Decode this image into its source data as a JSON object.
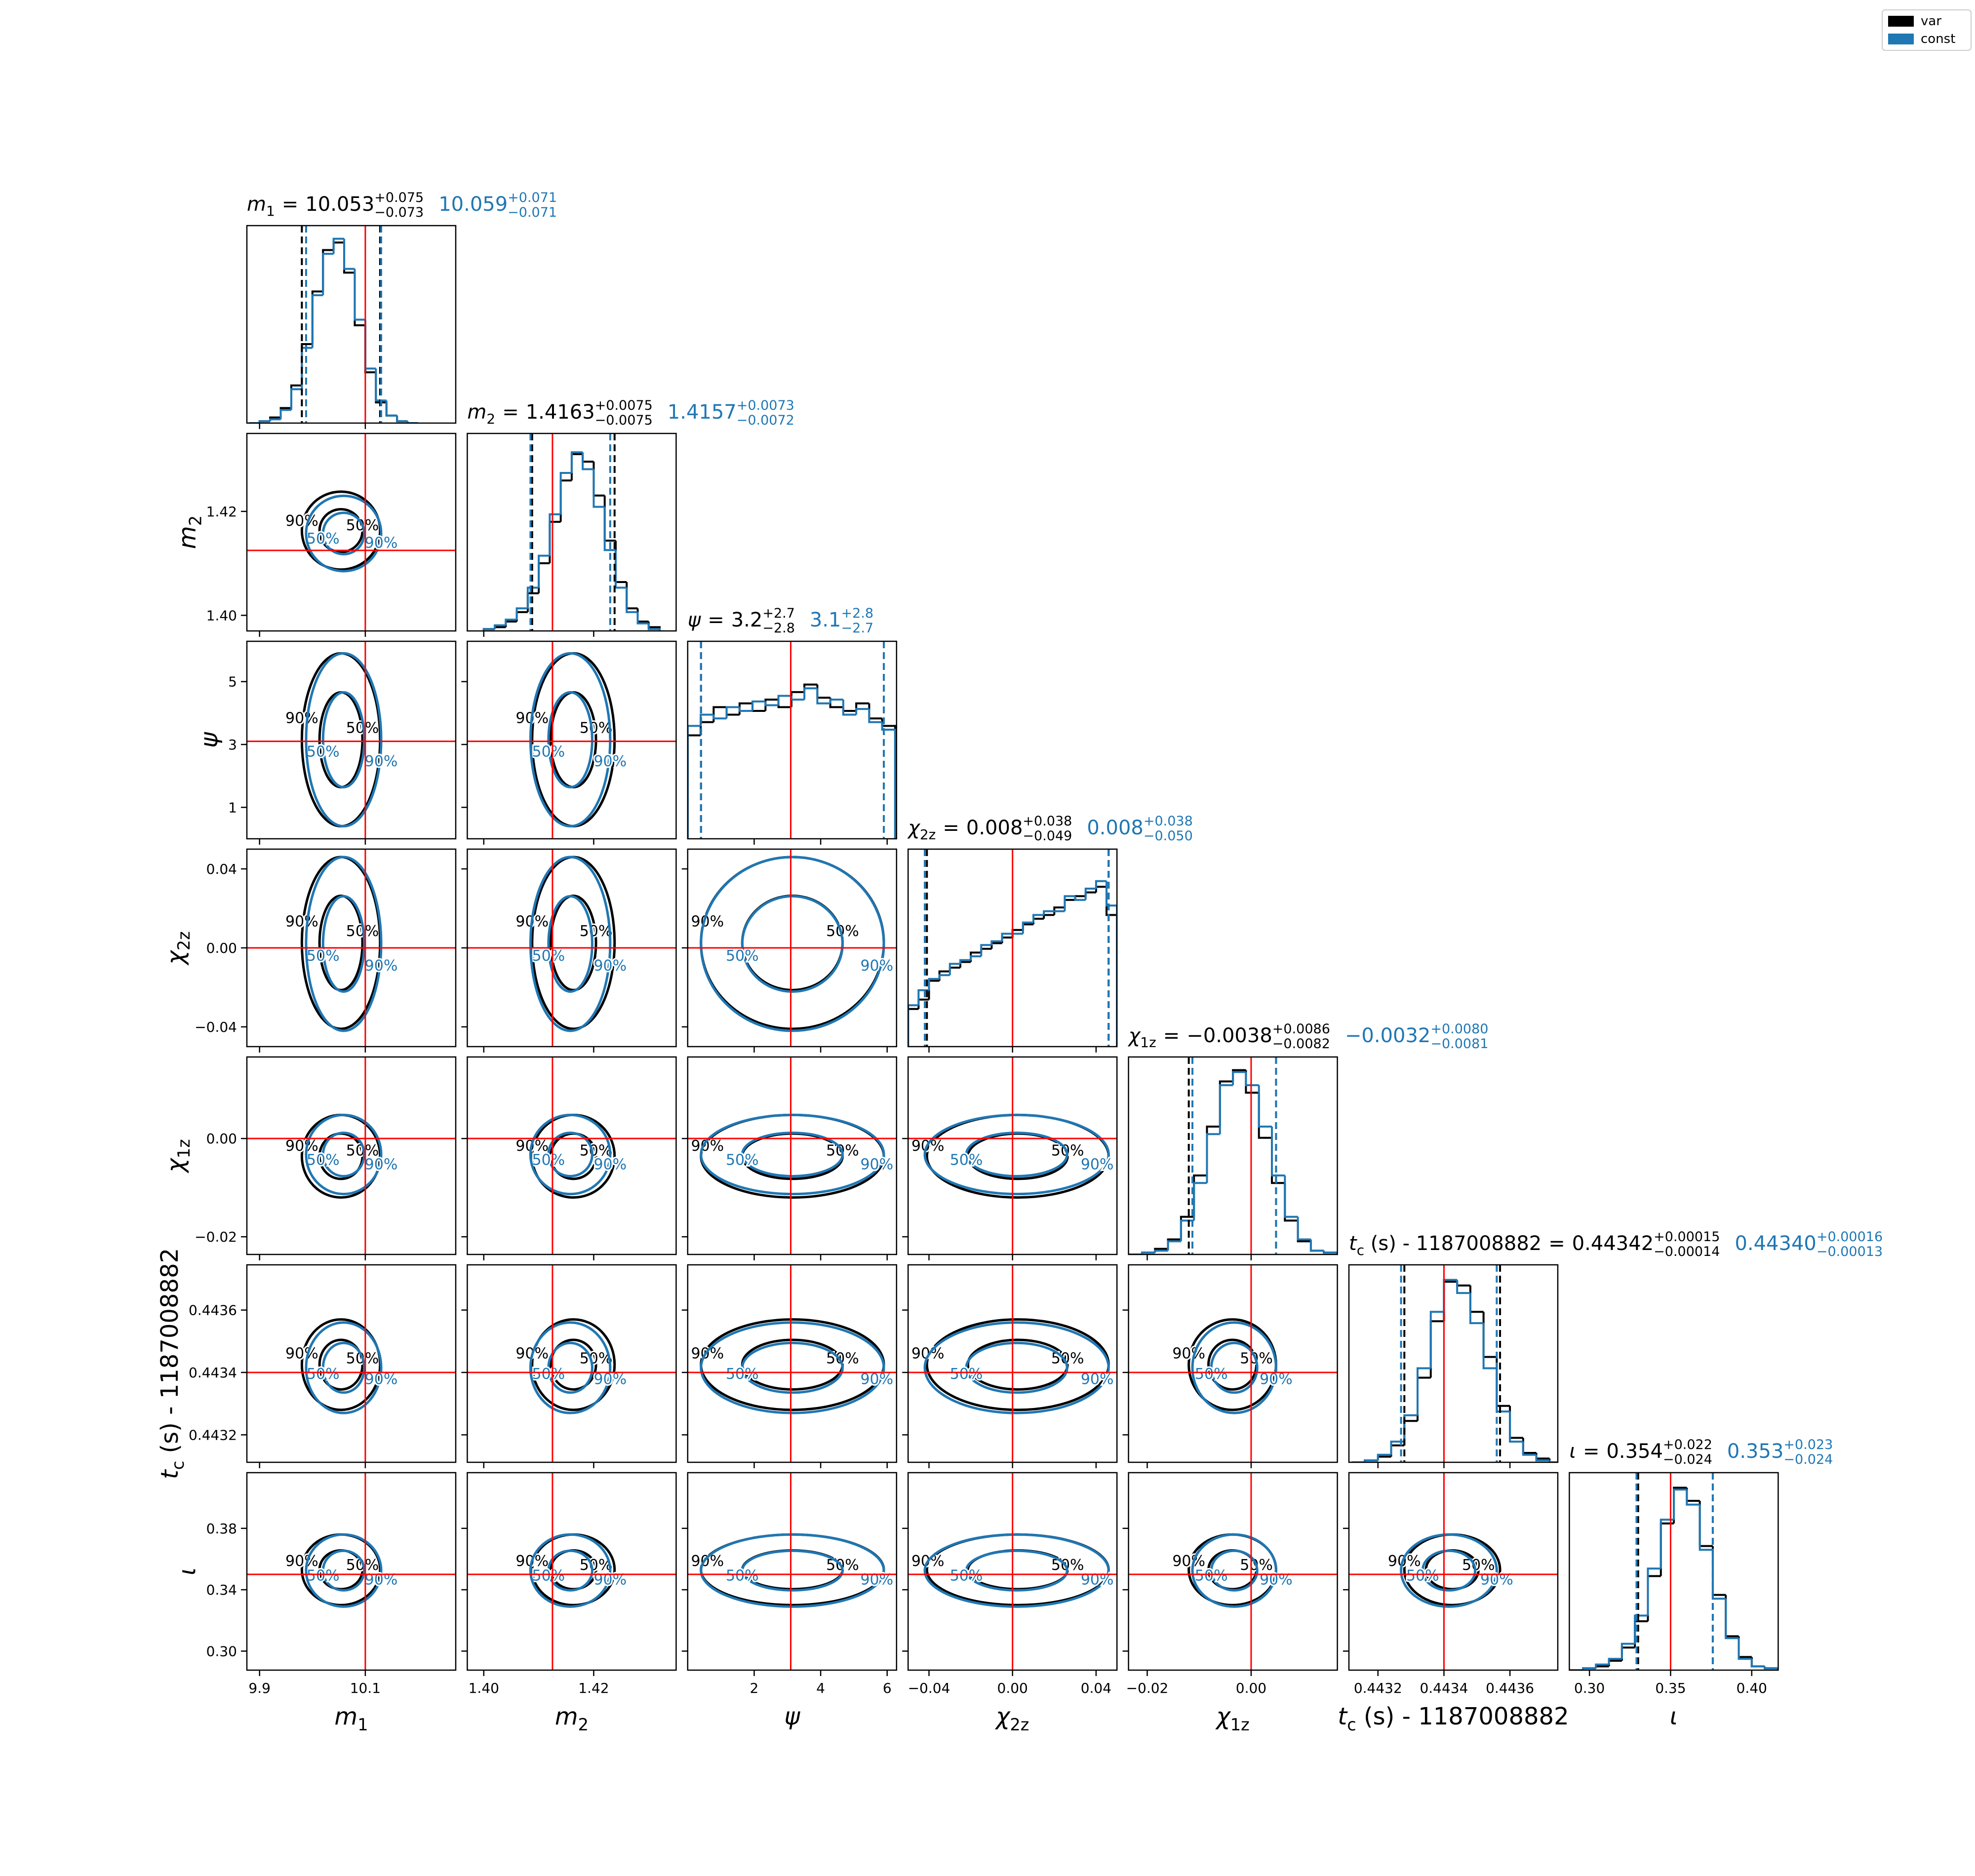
{
  "chart_data": {
    "type": "corner",
    "equals": "=",
    "legend_position": "upper right",
    "series": [
      {
        "name": "var",
        "color": "#000000"
      },
      {
        "name": "const",
        "color": "#1f77b4"
      }
    ],
    "truth_color": "#ff0000",
    "contour_levels": [
      {
        "value": 50,
        "label": "50%"
      },
      {
        "value": 90,
        "label": "90%"
      }
    ],
    "hist_ylim": [
      0,
      105
    ],
    "parameters": [
      {
        "label": {
          "base": "m",
          "sub": "1"
        },
        "lim": [
          9.876,
          10.271
        ],
        "xticks": [
          9.9,
          10.1
        ],
        "truth": 10.1,
        "summary": [
          {
            "median": 10.053,
            "plus": {
              "value": 0.075,
              "label": "+0.075"
            },
            "minus": {
              "value": 0.073,
              "label": "−0.073"
            }
          },
          {
            "median": 10.059,
            "plus": {
              "value": 0.071,
              "label": "+0.071"
            },
            "minus": {
              "value": 0.071,
              "label": "−0.071"
            }
          }
        ],
        "bins": [
          9.88,
          9.9,
          9.92,
          9.94,
          9.96,
          9.98,
          10,
          10.02,
          10.04,
          10.06,
          10.08,
          10.1,
          10.12,
          10.14,
          10.16,
          10.18,
          10.2
        ],
        "counts": [
          [
            0,
            1,
            3,
            8,
            20,
            42,
            70,
            92,
            96,
            80,
            52,
            27,
            11,
            4,
            1,
            0
          ],
          [
            0,
            1,
            2,
            7,
            18,
            40,
            68,
            90,
            98,
            82,
            55,
            29,
            12,
            4,
            1,
            0
          ]
        ]
      },
      {
        "label": {
          "base": "m",
          "sub": "2"
        },
        "lim": [
          1.397,
          1.435
        ],
        "xticks": [
          {
            "value": 1.4,
            "label": "1.40"
          },
          {
            "value": 1.42,
            "label": "1.42"
          }
        ],
        "yticks": [
          {
            "value": 1.4,
            "label": "1.40"
          },
          {
            "value": 1.42,
            "label": "1.42"
          }
        ],
        "truth": 1.4125,
        "summary": [
          {
            "median": 1.4163,
            "plus": {
              "value": 0.0075,
              "label": "+0.0075"
            },
            "minus": {
              "value": 0.0075,
              "label": "−0.0075"
            }
          },
          {
            "median": 1.4157,
            "plus": {
              "value": 0.0073,
              "label": "+0.0073"
            },
            "minus": {
              "value": 0.0072,
              "label": "−0.0072"
            }
          }
        ],
        "bins": [
          1.4,
          1.402,
          1.404,
          1.406,
          1.408,
          1.41,
          1.412,
          1.414,
          1.416,
          1.418,
          1.42,
          1.422,
          1.424,
          1.426,
          1.428,
          1.43,
          1.432
        ],
        "counts": [
          [
            1,
            2,
            5,
            10,
            20,
            36,
            58,
            80,
            94,
            90,
            72,
            48,
            26,
            12,
            5,
            2
          ],
          [
            1,
            3,
            6,
            12,
            23,
            40,
            62,
            84,
            95,
            86,
            66,
            43,
            23,
            10,
            4,
            1
          ]
        ]
      },
      {
        "label": {
          "base": "ψ"
        },
        "lim": [
          0,
          6.283
        ],
        "xticks": [
          2,
          4,
          6
        ],
        "yticks": [
          1,
          3,
          5
        ],
        "truth": 3.1,
        "summary": [
          {
            "median": 3.2,
            "plus": {
              "value": 2.7,
              "label": "+2.7"
            },
            "minus": {
              "value": 2.8,
              "label": "−2.8"
            }
          },
          {
            "median": 3.1,
            "plus": {
              "value": 2.8,
              "label": "+2.8"
            },
            "minus": {
              "value": 2.7,
              "label": "−2.7"
            }
          }
        ],
        "bins": [
          0,
          0.39,
          0.78,
          1.17,
          1.56,
          1.95,
          2.34,
          2.73,
          3.12,
          3.51,
          3.9,
          4.29,
          4.68,
          5.07,
          5.46,
          5.85,
          6.24
        ],
        "counts": [
          [
            55,
            62,
            70,
            66,
            72,
            68,
            74,
            70,
            78,
            82,
            75,
            70,
            68,
            72,
            64,
            60
          ],
          [
            60,
            66,
            64,
            70,
            68,
            73,
            71,
            76,
            74,
            80,
            72,
            74,
            66,
            69,
            62,
            58
          ]
        ]
      },
      {
        "label": {
          "base": "χ",
          "sub": "2z"
        },
        "lim": [
          -0.05,
          0.05
        ],
        "xticks": [
          {
            "value": -0.04,
            "label": "−0.04"
          },
          {
            "value": 0,
            "label": "0.00"
          },
          {
            "value": 0.04,
            "label": "0.04"
          }
        ],
        "yticks": [
          {
            "value": -0.04,
            "label": "−0.04"
          },
          {
            "value": 0,
            "label": "0.00"
          },
          {
            "value": 0.04,
            "label": "0.04"
          }
        ],
        "truth": 0,
        "summary": [
          {
            "median": 0.008,
            "plus": {
              "value": 0.038,
              "label": "+0.038"
            },
            "minus": {
              "value": 0.049,
              "label": "−0.049"
            }
          },
          {
            "median": 0.008,
            "plus": {
              "value": 0.038,
              "label": "+0.038"
            },
            "minus": {
              "value": 0.05,
              "label": "−0.050"
            }
          }
        ],
        "bins": [
          -0.05,
          -0.045,
          -0.04,
          -0.035,
          -0.03,
          -0.025,
          -0.02,
          -0.015,
          -0.01,
          -0.005,
          0,
          0.005,
          0.01,
          0.015,
          0.02,
          0.025,
          0.03,
          0.035,
          0.04,
          0.045,
          0.05
        ],
        "counts": [
          [
            20,
            25,
            35,
            40,
            42,
            45,
            50,
            52,
            55,
            58,
            62,
            65,
            68,
            70,
            74,
            78,
            80,
            82,
            85,
            70
          ],
          [
            22,
            30,
            36,
            38,
            44,
            46,
            48,
            54,
            56,
            60,
            60,
            66,
            70,
            72,
            72,
            80,
            78,
            84,
            88,
            75
          ]
        ]
      },
      {
        "label": {
          "base": "χ",
          "sub": "1z"
        },
        "lim": [
          -0.0236,
          0.0166
        ],
        "xticks": [
          {
            "value": -0.02,
            "label": "−0.02"
          },
          {
            "value": 0,
            "label": "0.00"
          }
        ],
        "yticks": [
          {
            "value": -0.02,
            "label": "−0.02"
          },
          {
            "value": 0,
            "label": "0.00"
          }
        ],
        "truth": 0,
        "summary": [
          {
            "median": {
              "value": -0.0038,
              "label": "−0.0038"
            },
            "plus": {
              "value": 0.0086,
              "label": "+0.0086"
            },
            "minus": {
              "value": 0.0082,
              "label": "−0.0082"
            }
          },
          {
            "median": {
              "value": -0.0032,
              "label": "−0.0032"
            },
            "plus": {
              "value": 0.008,
              "label": "+0.0080"
            },
            "minus": {
              "value": 0.0081,
              "label": "−0.0081"
            }
          }
        ],
        "bins": [
          -0.0235,
          -0.021,
          -0.0185,
          -0.016,
          -0.0135,
          -0.011,
          -0.0085,
          -0.006,
          -0.0035,
          -0.001,
          0.0015,
          0.004,
          0.0065,
          0.009,
          0.0115,
          0.014,
          0.0165
        ],
        "counts": [
          [
            0,
            1,
            3,
            8,
            20,
            42,
            68,
            92,
            98,
            86,
            62,
            38,
            18,
            7,
            2,
            1
          ],
          [
            0,
            1,
            2,
            7,
            18,
            38,
            64,
            90,
            97,
            90,
            68,
            42,
            20,
            8,
            2,
            1
          ]
        ]
      },
      {
        "label": {
          "base": "t",
          "sub": "c",
          "rest": " (s) - 1187008882"
        },
        "lim": [
          0.443112,
          0.443745
        ],
        "xticks": [
          0.4432,
          0.4434,
          0.4436
        ],
        "yticks": [
          0.4432,
          0.4434,
          0.4436
        ],
        "truth": 0.4434,
        "summary": [
          {
            "median": 0.44342,
            "plus": {
              "value": 0.00015,
              "label": "+0.00015"
            },
            "minus": {
              "value": 0.00014,
              "label": "−0.00014"
            }
          },
          {
            "median": {
              "value": 0.4434,
              "label": "0.44340"
            },
            "plus": {
              "value": 0.00016,
              "label": "+0.00016"
            },
            "minus": {
              "value": 0.00013,
              "label": "−0.00013"
            }
          }
        ],
        "bins": [
          0.44312,
          0.44316,
          0.4432,
          0.44324,
          0.44328,
          0.44332,
          0.44336,
          0.4434,
          0.44344,
          0.44348,
          0.44352,
          0.44356,
          0.4436,
          0.44364,
          0.44368,
          0.44372,
          0.44376
        ],
        "counts": [
          [
            0,
            1,
            3,
            9,
            22,
            45,
            75,
            96,
            94,
            80,
            56,
            30,
            13,
            5,
            2,
            0
          ],
          [
            0,
            1,
            4,
            11,
            25,
            50,
            80,
            97,
            90,
            74,
            50,
            27,
            11,
            4,
            1,
            0
          ]
        ]
      },
      {
        "label": {
          "base": "ι"
        },
        "lim": [
          0.2876,
          0.4163
        ],
        "xticks": [
          {
            "value": 0.3,
            "label": "0.30"
          },
          {
            "value": 0.35,
            "label": "0.35"
          },
          {
            "value": 0.4,
            "label": "0.40"
          }
        ],
        "yticks": [
          {
            "value": 0.3,
            "label": "0.30"
          },
          {
            "value": 0.34,
            "label": "0.34"
          },
          {
            "value": 0.38,
            "label": "0.38"
          }
        ],
        "truth": 0.35,
        "summary": [
          {
            "median": 0.354,
            "plus": {
              "value": 0.022,
              "label": "+0.022"
            },
            "minus": {
              "value": 0.024,
              "label": "−0.024"
            }
          },
          {
            "median": 0.353,
            "plus": {
              "value": 0.023,
              "label": "+0.023"
            },
            "minus": {
              "value": 0.024,
              "label": "−0.024"
            }
          }
        ],
        "bins": [
          0.288,
          0.296,
          0.304,
          0.312,
          0.32,
          0.328,
          0.336,
          0.344,
          0.352,
          0.36,
          0.368,
          0.376,
          0.384,
          0.392,
          0.4,
          0.408,
          0.416
        ],
        "counts": [
          [
            0,
            1,
            2,
            5,
            12,
            26,
            50,
            78,
            97,
            90,
            66,
            40,
            18,
            7,
            2,
            1
          ],
          [
            0,
            1,
            3,
            6,
            14,
            29,
            54,
            80,
            96,
            88,
            64,
            38,
            17,
            6,
            2,
            1
          ]
        ]
      }
    ]
  }
}
